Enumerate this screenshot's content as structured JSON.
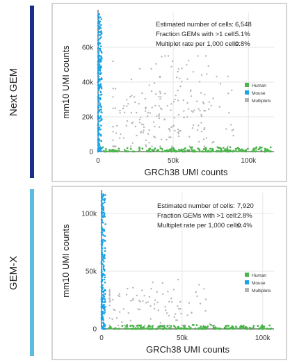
{
  "colors": {
    "next_gem_bar": "#1a2e86",
    "gem_x_bar": "#5bbcdc",
    "human": "#4bb44a",
    "mouse": "#1aa3e8",
    "multiplets": "#b5b5b5"
  },
  "chart_data": [
    {
      "type": "scatter",
      "panel_label": "Next GEM",
      "xlabel": "GRCh38 UMI counts",
      "ylabel": "mm10 UMI counts",
      "xlim": [
        0,
        117000
      ],
      "ylim": [
        0,
        80000
      ],
      "x_ticks": [
        {
          "value": 0,
          "label": "0"
        },
        {
          "value": 50000,
          "label": "50k"
        },
        {
          "value": 100000,
          "label": "100k"
        }
      ],
      "y_ticks": [
        {
          "value": 0,
          "label": "0"
        },
        {
          "value": 20000,
          "label": "20k"
        },
        {
          "value": 40000,
          "label": "40k"
        },
        {
          "value": 60000,
          "label": "60k"
        }
      ],
      "stats": [
        {
          "label": "Estimated number of cells:",
          "value": "6,548"
        },
        {
          "label": "Fraction GEMs with >1 cell:",
          "value": "5.1%"
        },
        {
          "label": "Multiplet rate per 1,000 cells:",
          "value": "0.8%"
        }
      ],
      "legend": [
        {
          "name": "Human",
          "color": "#4bb44a"
        },
        {
          "name": "Mouse",
          "color": "#1aa3e8"
        },
        {
          "name": "Multiplets",
          "color": "#b5b5b5"
        }
      ],
      "legend_position": "right",
      "series_shape": {
        "human": {
          "x_max": 115000,
          "y_max": 2500
        },
        "mouse": {
          "x_max": 2500,
          "y_max": 79000
        },
        "multiplets": {
          "x_range": [
            10000,
            90000
          ],
          "y_range": [
            3000,
            55000
          ],
          "center": [
            45000,
            22000
          ]
        }
      }
    },
    {
      "type": "scatter",
      "panel_label": "GEM-X",
      "xlabel": "GRCh38 UMI counts",
      "ylabel": "mm10 UMI counts",
      "xlim": [
        0,
        107000
      ],
      "ylim": [
        0,
        118000
      ],
      "x_ticks": [
        {
          "value": 0,
          "label": "0"
        },
        {
          "value": 50000,
          "label": "50k"
        },
        {
          "value": 100000,
          "label": "100k"
        }
      ],
      "y_ticks": [
        {
          "value": 0,
          "label": "0"
        },
        {
          "value": 50000,
          "label": "50k"
        },
        {
          "value": 100000,
          "label": "100k"
        }
      ],
      "stats": [
        {
          "label": "Estimated number of cells:",
          "value": "7,920"
        },
        {
          "label": "Fraction GEMs with >1 cell:",
          "value": "2.8%"
        },
        {
          "label": "Multiplet rate per 1,000 cells:",
          "value": "0.4%"
        }
      ],
      "legend": [
        {
          "name": "Human",
          "color": "#4bb44a"
        },
        {
          "name": "Mouse",
          "color": "#1aa3e8"
        },
        {
          "name": "Multiplets",
          "color": "#b5b5b5"
        }
      ],
      "legend_position": "right",
      "series_shape": {
        "human": {
          "x_max": 106000,
          "y_max": 3500
        },
        "mouse": {
          "x_max": 2500,
          "y_max": 117000
        },
        "multiplets": {
          "x_range": [
            5000,
            70000
          ],
          "y_range": [
            3000,
            45000
          ],
          "center": [
            30000,
            17000
          ]
        }
      }
    }
  ]
}
